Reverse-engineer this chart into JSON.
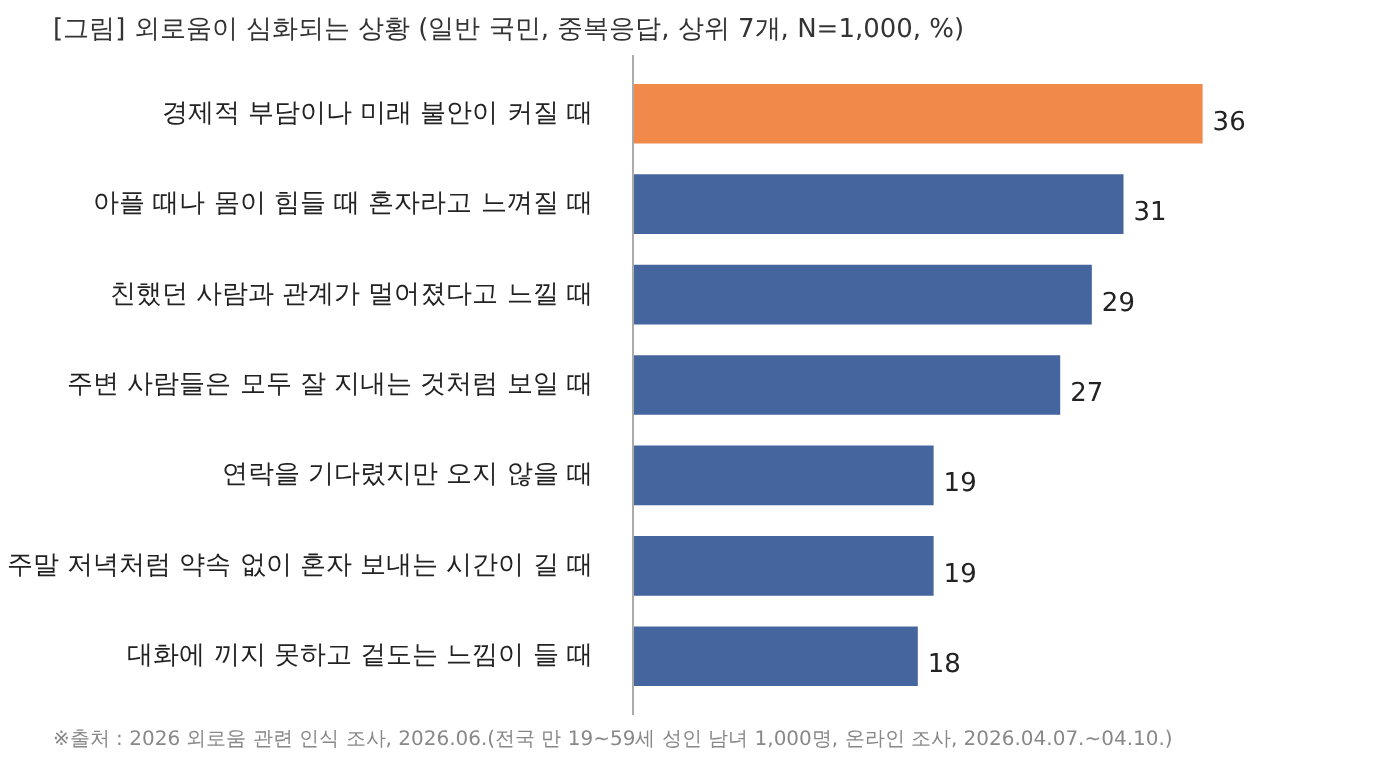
{
  "chart_data": {
    "type": "bar",
    "orientation": "horizontal",
    "title": "[그림] 외로움이 심화되는 상황 (일반 국민, 중복응답, 상위 7개, N=1,000, %)",
    "categories": [
      "경제적 부담이나 미래 불안이 커질 때",
      "아플 때나 몸이 힘들 때 혼자라고 느껴질 때",
      "친했던 사람과 관계가 멀어졌다고 느낄 때",
      "주변 사람들은 모두 잘 지내는 것처럼 보일 때",
      "연락을 기다렸지만 오지 않을 때",
      "주말 저녁처럼 약속 없이 혼자 보내는 시간이 길 때",
      "대화에 끼지 못하고 겉도는 느낌이 들 때"
    ],
    "values": [
      36,
      31,
      29,
      27,
      19,
      19,
      18
    ],
    "colors": [
      "#f0894a",
      "#44659e",
      "#44659e",
      "#44659e",
      "#44659e",
      "#44659e",
      "#44659e"
    ],
    "data_labels": true,
    "grid": false,
    "annotations": [
      "※출처 : 2026 외로움 관련 인식 조사, 2026.06.(전국 만 19~59세 성인 남녀 1,000명, 온라인 조사, 2026.04.07.~04.10.)"
    ]
  }
}
